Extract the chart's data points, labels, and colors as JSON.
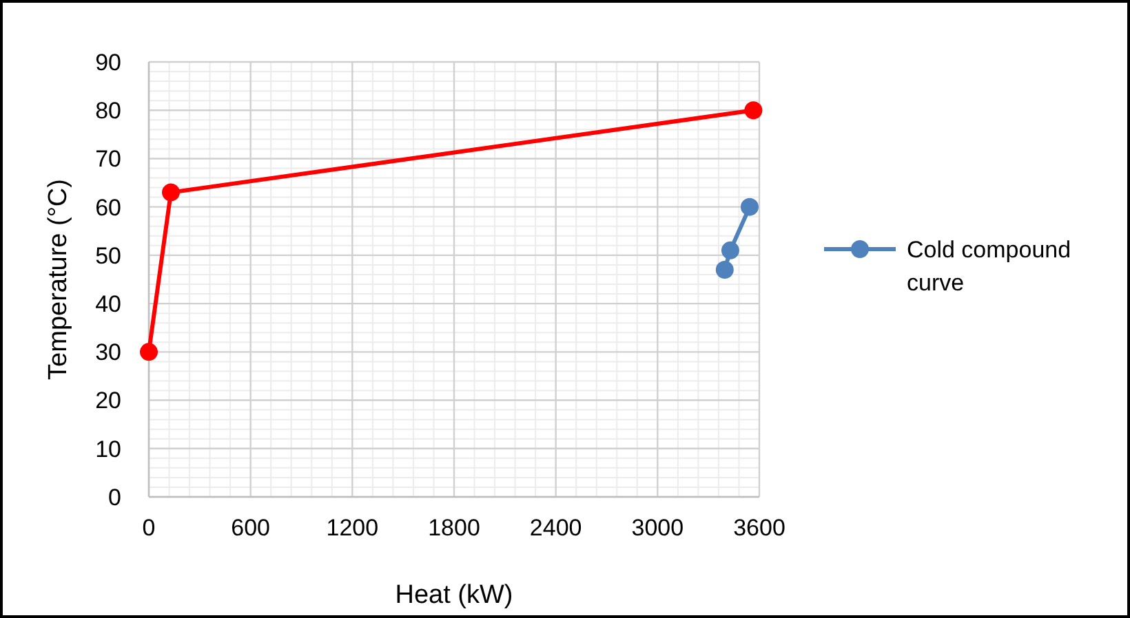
{
  "chart_data": {
    "type": "line",
    "xlabel": "Heat (kW)",
    "ylabel": "Temperature (°C)",
    "xlim": [
      0,
      3600
    ],
    "xticks": [
      0,
      600,
      1200,
      1800,
      2400,
      3000,
      3600
    ],
    "ylim": [
      0,
      90
    ],
    "yticks": [
      0,
      10,
      20,
      30,
      40,
      50,
      60,
      70,
      80,
      90
    ],
    "grid": true,
    "legend": "right",
    "marker": "circle",
    "line_style": "solid",
    "series": [
      {
        "color": "#ff0000",
        "x": [
          0,
          130,
          3565
        ],
        "values": [
          30,
          63,
          80
        ]
      },
      {
        "name": "Cold compound curve",
        "color": "#4f81bd",
        "x": [
          3396,
          3429,
          3543
        ],
        "values": [
          47,
          51,
          60
        ]
      }
    ]
  }
}
